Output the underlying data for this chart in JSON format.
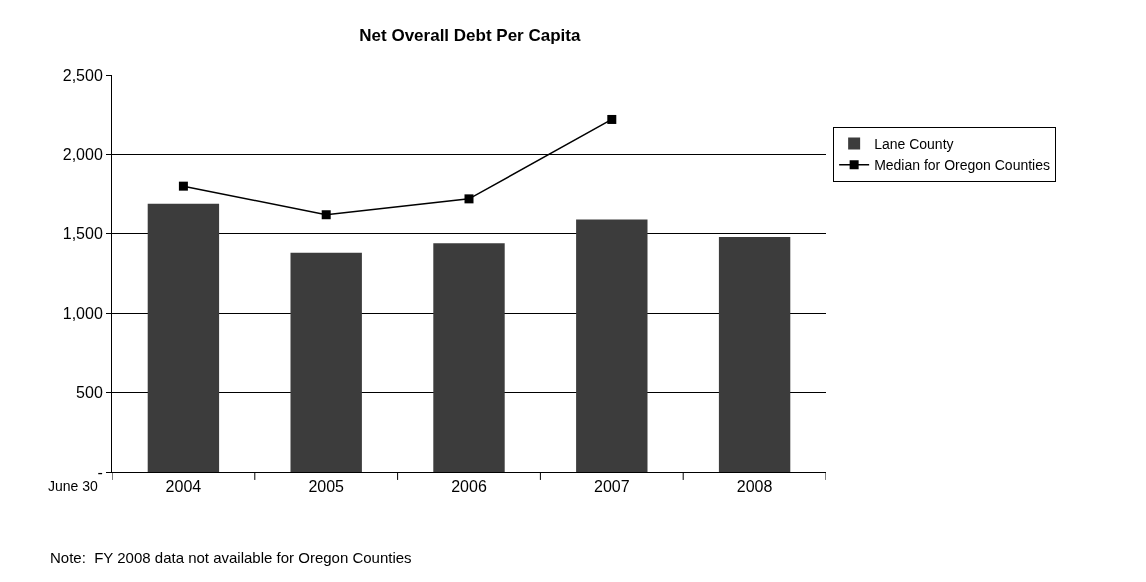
{
  "chart_data": {
    "type": "bar",
    "title": "Net Overall Debt Per Capita",
    "categories": [
      "2004",
      "2005",
      "2006",
      "2007",
      "2008"
    ],
    "series": [
      {
        "name": "Lane County",
        "color": "#3c3c3c",
        "values": [
          1690,
          1380,
          1440,
          1590,
          1480
        ]
      },
      {
        "name": "Median for Oregon Counties",
        "type": "line",
        "color": "#000000",
        "marker": "square",
        "values": [
          1800,
          1620,
          1720,
          2220,
          null
        ]
      }
    ],
    "ylim": [
      0,
      2500
    ],
    "yticks": [
      {
        "value": 0,
        "label": "-"
      },
      {
        "value": 500,
        "label": "500"
      },
      {
        "value": 1000,
        "label": "1,000"
      },
      {
        "value": 1500,
        "label": "1,500"
      },
      {
        "value": 2000,
        "label": "2,000"
      },
      {
        "value": 2500,
        "label": "2,500"
      }
    ],
    "grid": "y",
    "legend": "right",
    "annotations": [
      "June 30",
      "Note:  FY 2008 data not available for Oregon Counties"
    ]
  }
}
